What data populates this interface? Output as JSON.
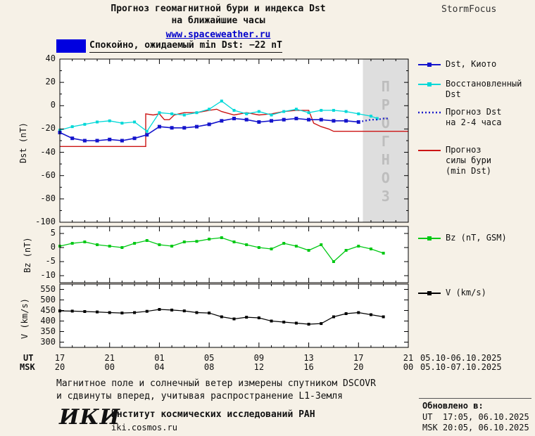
{
  "header": {
    "title_line1": "Прогноз геомагнитной бури и индекса Dst",
    "title_line2": "на ближайшие часы",
    "site": "www.spaceweather.ru",
    "brand": "StormFocus"
  },
  "status": {
    "text": "Спокойно, ожидаемый min Dst: −22 nT",
    "swatch_color": "#0000e0"
  },
  "chart_data": {
    "type": "line",
    "title": "Прогноз геомагнитной бури и индекса Dst на ближайшие часы",
    "x_axis": {
      "hours_span": 28,
      "tick_hours": [
        0,
        4,
        8,
        12,
        16,
        20,
        24,
        28
      ],
      "ut_label": "UT",
      "msk_label": "MSK",
      "ut_ticks": [
        "17",
        "21",
        "01",
        "05",
        "09",
        "13",
        "17",
        "21"
      ],
      "msk_ticks": [
        "20",
        "00",
        "04",
        "08",
        "12",
        "16",
        "20",
        "00"
      ],
      "ut_dates": "05.10-06.10.2025",
      "msk_dates": "05.10-07.10.2025"
    },
    "panels": [
      {
        "name": "dst",
        "ylabel": "Dst (nT)",
        "ylim": [
          -100,
          40
        ],
        "yticks": [
          40,
          20,
          0,
          -20,
          -40,
          -60,
          -80,
          -100
        ],
        "yminor": [
          30,
          10,
          -10,
          -30,
          -50,
          -70,
          -90
        ],
        "forecast_region": {
          "start_hour": 24.35,
          "label": "ПРОГНОЗ",
          "fill": "#dedede",
          "text_color": "#bdbdbd"
        },
        "series": [
          "storm_forecast",
          "dst_restored",
          "dst_kyoto",
          "dst_forecast"
        ]
      },
      {
        "name": "bz",
        "ylabel": "Bz (nT)",
        "ylim": [
          -12.5,
          7.5
        ],
        "yticks": [
          5,
          0,
          -5,
          -10
        ],
        "yminor": [],
        "series": [
          "bz"
        ]
      },
      {
        "name": "v",
        "ylabel": "V (km/s)",
        "ylim": [
          275,
          575
        ],
        "yticks": [
          550,
          500,
          450,
          400,
          350,
          300
        ],
        "yminor": [],
        "series": [
          "v"
        ]
      }
    ],
    "series": {
      "dst_kyoto": {
        "label": "Dst, Киото",
        "color": "#1414cc",
        "marker": true,
        "marker_size": 5,
        "width": 1.6,
        "points": [
          [
            0,
            -23
          ],
          [
            1,
            -28
          ],
          [
            2,
            -30
          ],
          [
            3,
            -30
          ],
          [
            4,
            -29
          ],
          [
            5,
            -30
          ],
          [
            6,
            -28
          ],
          [
            7,
            -25
          ],
          [
            8,
            -18
          ],
          [
            9,
            -19
          ],
          [
            10,
            -19
          ],
          [
            11,
            -18
          ],
          [
            12,
            -16
          ],
          [
            13,
            -13
          ],
          [
            14,
            -11
          ],
          [
            15,
            -12
          ],
          [
            16,
            -14
          ],
          [
            17,
            -13
          ],
          [
            18,
            -12
          ],
          [
            19,
            -11
          ],
          [
            20,
            -12
          ],
          [
            21,
            -12
          ],
          [
            22,
            -13
          ],
          [
            23,
            -13
          ],
          [
            24,
            -14
          ]
        ]
      },
      "dst_restored": {
        "label": "Восстановленный Dst",
        "color": "#00d8d8",
        "marker": true,
        "marker_size": 4,
        "width": 1.3,
        "points": [
          [
            0,
            -21
          ],
          [
            1,
            -18
          ],
          [
            2,
            -16
          ],
          [
            3,
            -14
          ],
          [
            4,
            -13
          ],
          [
            5,
            -15
          ],
          [
            6,
            -14
          ],
          [
            7,
            -22
          ],
          [
            8,
            -6
          ],
          [
            9,
            -7
          ],
          [
            10,
            -8
          ],
          [
            11,
            -6
          ],
          [
            12,
            -3
          ],
          [
            13,
            4
          ],
          [
            14,
            -4
          ],
          [
            15,
            -7
          ],
          [
            16,
            -5
          ],
          [
            17,
            -8
          ],
          [
            18,
            -5
          ],
          [
            19,
            -3
          ],
          [
            20,
            -6
          ],
          [
            21,
            -4
          ],
          [
            22,
            -4
          ],
          [
            23,
            -5
          ],
          [
            24,
            -7
          ],
          [
            25,
            -9
          ],
          [
            25.5,
            -11
          ]
        ]
      },
      "dst_forecast": {
        "label": "Прогноз Dst на 2-4 часа",
        "color": "#2020cc",
        "dash": "2 3",
        "width": 2.2,
        "points": [
          [
            24,
            -14
          ],
          [
            24.5,
            -13
          ],
          [
            25,
            -12
          ],
          [
            25.5,
            -12
          ],
          [
            26,
            -11
          ],
          [
            26.5,
            -11
          ]
        ]
      },
      "storm_forecast": {
        "label": "Прогноз силы бури (min Dst)",
        "color": "#cc1414",
        "width": 1.4,
        "points": [
          [
            0,
            -35
          ],
          [
            6.9,
            -35
          ],
          [
            6.9,
            -7
          ],
          [
            7.5,
            -8
          ],
          [
            8,
            -7
          ],
          [
            8.4,
            -12
          ],
          [
            8.8,
            -12
          ],
          [
            9.2,
            -8
          ],
          [
            10,
            -6
          ],
          [
            11,
            -6
          ],
          [
            12,
            -4
          ],
          [
            12.6,
            -3
          ],
          [
            13,
            -5
          ],
          [
            14,
            -8
          ],
          [
            15,
            -6
          ],
          [
            16,
            -8
          ],
          [
            17,
            -7
          ],
          [
            18,
            -5
          ],
          [
            19,
            -4
          ],
          [
            20,
            -4
          ],
          [
            20.4,
            -15
          ],
          [
            21,
            -18
          ],
          [
            21.6,
            -20
          ],
          [
            22,
            -22
          ],
          [
            28,
            -22
          ]
        ]
      },
      "bz": {
        "label": "Bz (nT, GSM)",
        "color": "#00c814",
        "marker": true,
        "marker_size": 4,
        "width": 1.3,
        "points": [
          [
            0,
            0.5
          ],
          [
            1,
            1.5
          ],
          [
            2,
            2
          ],
          [
            3,
            1
          ],
          [
            4,
            0.5
          ],
          [
            5,
            0
          ],
          [
            6,
            1.5
          ],
          [
            7,
            2.5
          ],
          [
            8,
            1
          ],
          [
            9,
            0.5
          ],
          [
            10,
            2
          ],
          [
            11,
            2.2
          ],
          [
            12,
            3
          ],
          [
            13,
            3.5
          ],
          [
            14,
            2
          ],
          [
            15,
            1
          ],
          [
            16,
            0
          ],
          [
            17,
            -0.5
          ],
          [
            18,
            1.5
          ],
          [
            19,
            0.5
          ],
          [
            20,
            -1
          ],
          [
            21,
            1
          ],
          [
            22,
            -5
          ],
          [
            23,
            -1
          ],
          [
            24,
            0.5
          ],
          [
            25,
            -0.5
          ],
          [
            26,
            -2
          ]
        ]
      },
      "v": {
        "label": "V (km/s)",
        "color": "#000000",
        "marker": true,
        "marker_size": 4,
        "width": 1.2,
        "points": [
          [
            0,
            448
          ],
          [
            1,
            447
          ],
          [
            2,
            445
          ],
          [
            3,
            443
          ],
          [
            4,
            440
          ],
          [
            5,
            438
          ],
          [
            6,
            440
          ],
          [
            7,
            446
          ],
          [
            8,
            455
          ],
          [
            9,
            452
          ],
          [
            10,
            448
          ],
          [
            11,
            440
          ],
          [
            12,
            438
          ],
          [
            13,
            420
          ],
          [
            14,
            410
          ],
          [
            15,
            418
          ],
          [
            16,
            415
          ],
          [
            17,
            400
          ],
          [
            18,
            395
          ],
          [
            19,
            390
          ],
          [
            20,
            385
          ],
          [
            21,
            388
          ],
          [
            22,
            420
          ],
          [
            23,
            435
          ],
          [
            24,
            440
          ],
          [
            25,
            430
          ],
          [
            26,
            420
          ]
        ]
      }
    }
  },
  "legend": {
    "entries": [
      {
        "id": "dst-kyoto",
        "label_lines": [
          "Dst, Киото"
        ],
        "color": "#1414cc",
        "marker": true,
        "dash": false
      },
      {
        "id": "dst-restored",
        "label_lines": [
          "Восстановленный",
          "Dst"
        ],
        "color": "#00d8d8",
        "marker": true,
        "dash": false
      },
      {
        "id": "dst-forecast",
        "label_lines": [
          "Прогноз Dst",
          "на 2-4 часа"
        ],
        "color": "#2020cc",
        "marker": false,
        "dash": true
      },
      {
        "id": "storm-forecast",
        "label_lines": [
          "Прогноз",
          "силы бури",
          "(min Dst)"
        ],
        "color": "#cc1414",
        "marker": false,
        "dash": false
      },
      {
        "id": "bz",
        "label_lines": [
          "Bz (nT, GSM)"
        ],
        "color": "#00c814",
        "marker": true,
        "dash": false
      },
      {
        "id": "v",
        "label_lines": [
          "V (km/s)"
        ],
        "color": "#000000",
        "marker": true,
        "dash": false
      }
    ]
  },
  "footer": {
    "note_line1": "Магнитное поле и солнечный ветер измерены спутником DSCOVR",
    "note_line2": "и сдвинуты вперед, учитывая распространение L1-Земля",
    "logo": "ИКИ",
    "institute": "Институт космических исследований РАН",
    "institute_site": "iki.cosmos.ru",
    "updated_label": "Обновлено в:",
    "updated_ut": "UT  17:05, 06.10.2025",
    "updated_msk": "MSK 20:05, 06.10.2025"
  }
}
